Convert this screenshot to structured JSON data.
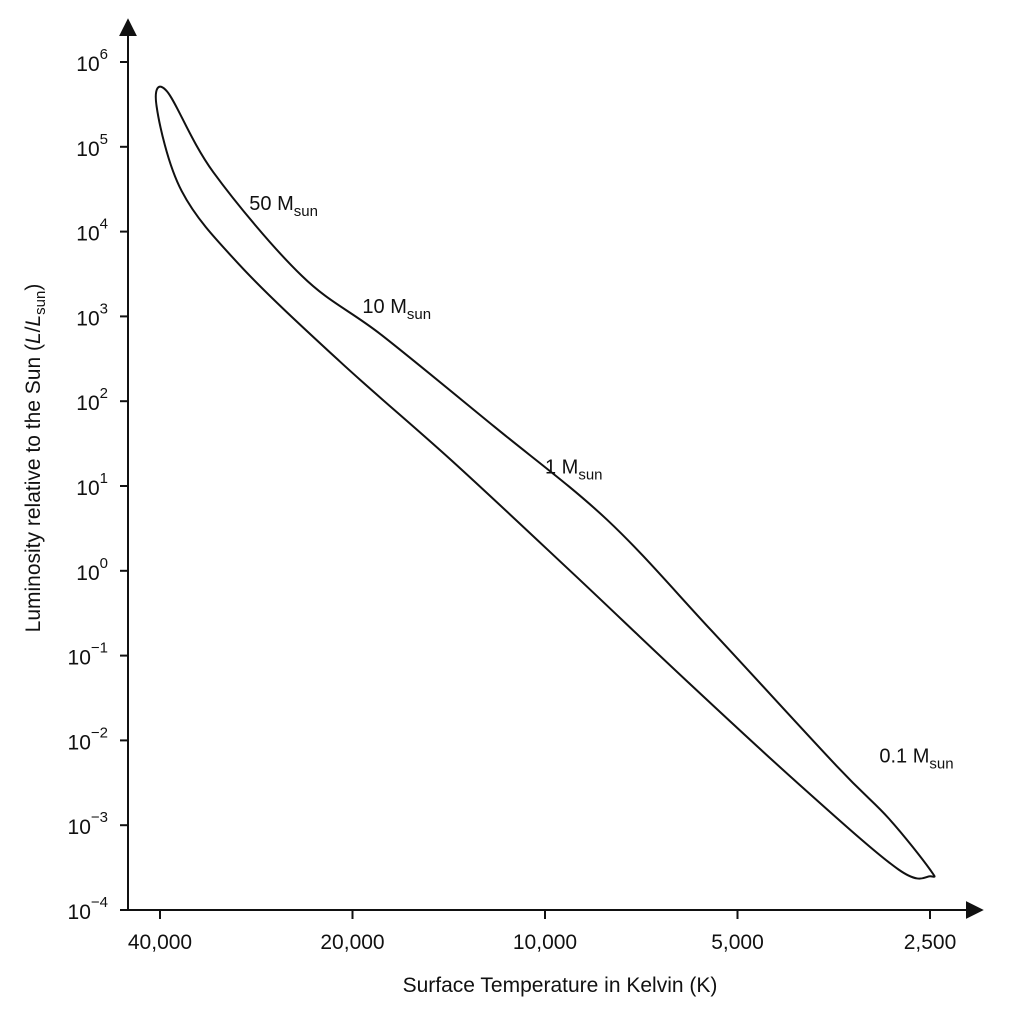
{
  "chart_data": {
    "type": "area",
    "xlabel": "Surface Temperature in Kelvin (K)",
    "ylabel": {
      "prefix": "Luminosity relative to the Sun (",
      "L1": "L",
      "slash": "/",
      "L2": "L",
      "sub": "sun",
      "suffix": ")"
    },
    "x_scale": "log-reversed",
    "y_scale": "log",
    "xlim": [
      44000,
      2000
    ],
    "ylim": [
      0.0001,
      1000000
    ],
    "x_ticks": [
      {
        "value": 40000,
        "label": "40,000"
      },
      {
        "value": 20000,
        "label": "20,000"
      },
      {
        "value": 10000,
        "label": "10,000"
      },
      {
        "value": 5000,
        "label": "5,000"
      },
      {
        "value": 2500,
        "label": "2,500"
      }
    ],
    "y_ticks": [
      {
        "value": 1000000,
        "base": "10",
        "exp": "6"
      },
      {
        "value": 100000,
        "base": "10",
        "exp": "5"
      },
      {
        "value": 10000,
        "base": "10",
        "exp": "4"
      },
      {
        "value": 1000,
        "base": "10",
        "exp": "3"
      },
      {
        "value": 100,
        "base": "10",
        "exp": "2"
      },
      {
        "value": 10,
        "base": "10",
        "exp": "1"
      },
      {
        "value": 1,
        "base": "10",
        "exp": "0"
      },
      {
        "value": 0.1,
        "base": "10",
        "exp": "−1"
      },
      {
        "value": 0.01,
        "base": "10",
        "exp": "−2"
      },
      {
        "value": 0.001,
        "base": "10",
        "exp": "−3"
      },
      {
        "value": 0.0001,
        "base": "10",
        "exp": "−4"
      }
    ],
    "series": [
      {
        "upper_edge": [
          {
            "T": 39000,
            "L": 450000
          },
          {
            "T": 33000,
            "L": 50000
          },
          {
            "T": 24000,
            "L": 3000
          },
          {
            "T": 18000,
            "L": 600
          },
          {
            "T": 12000,
            "L": 50
          },
          {
            "T": 8000,
            "L": 4
          },
          {
            "T": 5500,
            "L": 0.2
          },
          {
            "T": 3500,
            "L": 0.005
          },
          {
            "T": 2900,
            "L": 0.0012
          },
          {
            "T": 2500,
            "L": 0.0003
          }
        ],
        "lower_edge": [
          {
            "T": 2500,
            "L": 0.00025
          },
          {
            "T": 2800,
            "L": 0.0003
          },
          {
            "T": 4000,
            "L": 0.003
          },
          {
            "T": 6000,
            "L": 0.05
          },
          {
            "T": 9000,
            "L": 0.9
          },
          {
            "T": 14000,
            "L": 20
          },
          {
            "T": 21000,
            "L": 300
          },
          {
            "T": 30000,
            "L": 4000
          },
          {
            "T": 37000,
            "L": 30000
          },
          {
            "T": 40500,
            "L": 300000
          }
        ]
      }
    ],
    "annotations": [
      {
        "main": "50 M",
        "sub": "sun",
        "T": 29000,
        "L": 18000
      },
      {
        "main": "10 M",
        "sub": "sun",
        "T": 19300,
        "L": 1100
      },
      {
        "main": "1 M",
        "sub": "sun",
        "T": 10000,
        "L": 14
      },
      {
        "main": "0.1 M",
        "sub": "sun",
        "T": 3000,
        "L": 0.0055
      }
    ],
    "grid": false,
    "colors": {
      "line": "#111111",
      "fill": "#ffffff"
    }
  }
}
